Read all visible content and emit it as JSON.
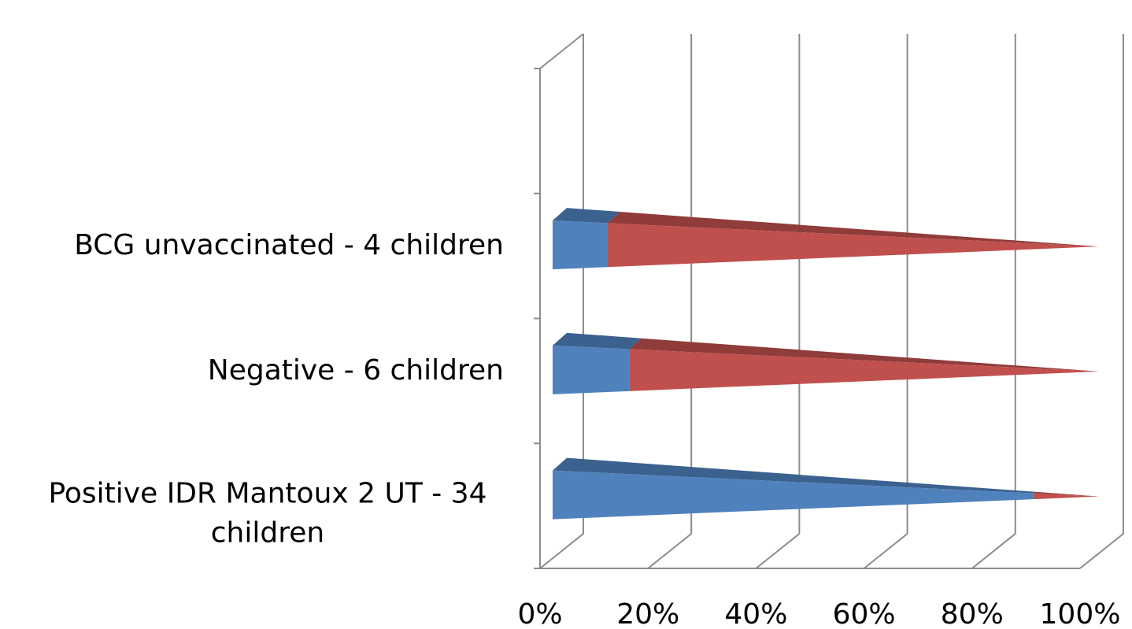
{
  "chart_data": {
    "type": "bar",
    "orientation": "horizontal",
    "stacked": "percent",
    "style": "3d-cone",
    "categories": [
      "Positive IDR Mantoux 2 UT - 34 children",
      "Negative - 6 children",
      "BCG unvaccinated - 4 children"
    ],
    "series": [
      {
        "values": [
          88,
          14,
          10
        ],
        "color": "#4f81bd"
      },
      {
        "values": [
          12,
          86,
          90
        ],
        "color": "#c0504d"
      }
    ],
    "xlim": [
      0,
      100
    ],
    "x_ticks": [
      "0%",
      "20%",
      "40%",
      "60%",
      "80%",
      "100%"
    ],
    "grid": true,
    "legend": "none"
  }
}
